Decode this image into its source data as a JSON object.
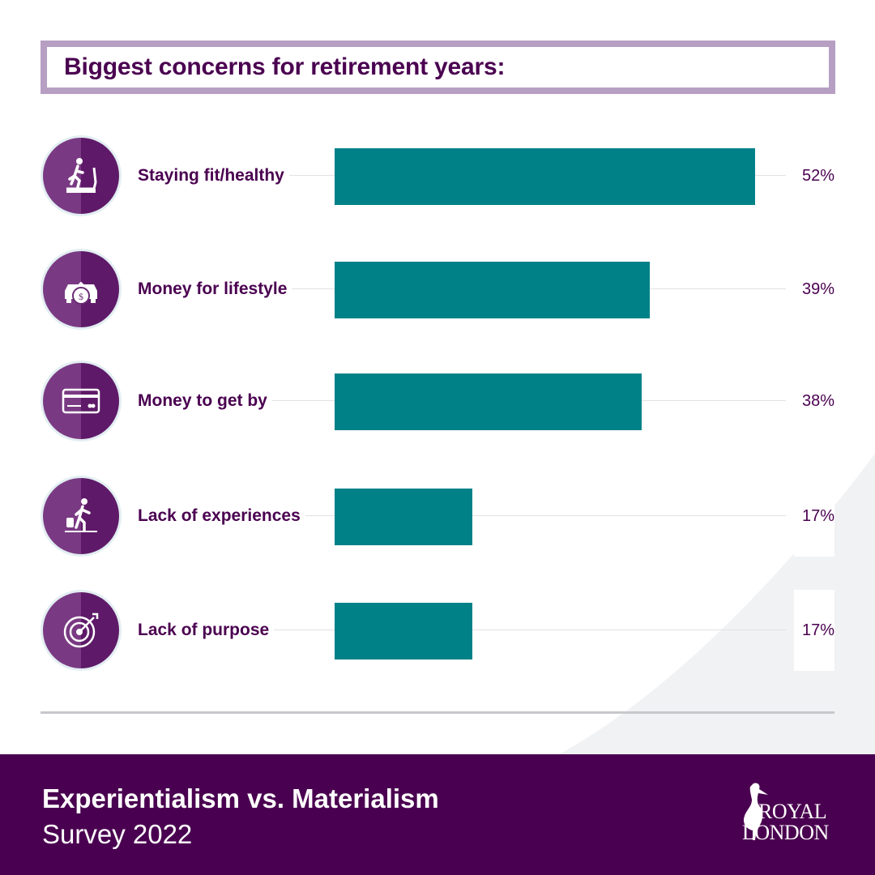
{
  "title": "Biggest concerns for retirement years:",
  "chart_data": {
    "type": "bar",
    "orientation": "horizontal",
    "categories": [
      "Staying fit/healthy",
      "Money for lifestyle",
      "Money to get by",
      "Lack of experiences",
      "Lack of purpose"
    ],
    "values": [
      52,
      39,
      38,
      17,
      17
    ],
    "value_labels": [
      "52%",
      "39%",
      "38%",
      "17%",
      "17%"
    ],
    "icons": [
      "treadmill-runner-icon",
      "car-money-bag-icon",
      "credit-card-icon",
      "traveler-luggage-icon",
      "target-arrow-icon"
    ],
    "xlim": [
      0,
      52
    ],
    "bar_color": "#008188"
  },
  "footer": {
    "title": "Experientialism vs. Materialism",
    "subtitle": "Survey 2022",
    "logo_line1": "ROYAL",
    "logo_line2": "LONDON"
  },
  "colors": {
    "brand_purple": "#4a0050",
    "title_border": "#b79ec3",
    "bar": "#008188"
  }
}
